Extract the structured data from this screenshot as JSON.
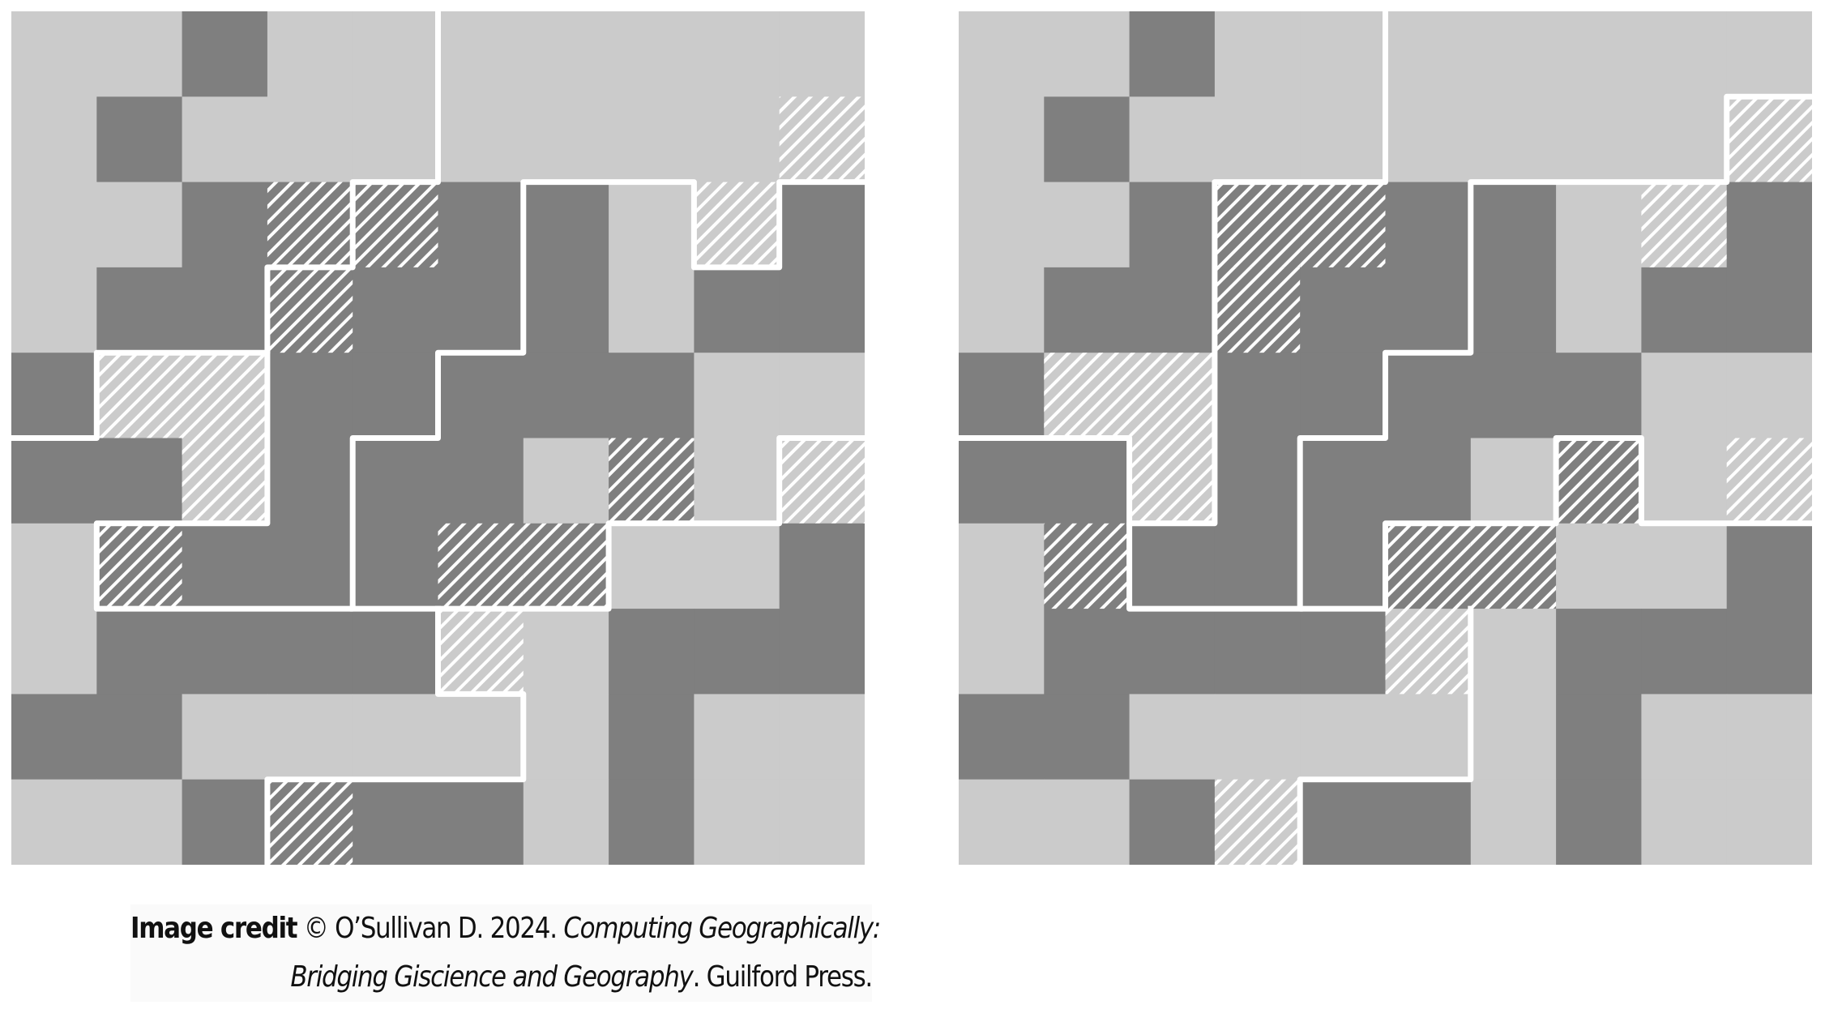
{
  "diagrams": [
    {
      "rows": [
        "LLDLLLLLLL",
        "LDLLLLLLLL",
        "LLDDDDDLLD",
        "LDDDDDDLDD",
        "DLLDDDDDLL",
        "DDLDDDLDLL",
        "LDDDDDDLLD",
        "LDDDDLLDDD",
        "DDLLLLLDLL",
        "LLDDDDLDLL"
      ],
      "hatched_cells": [
        [
          1,
          9
        ],
        [
          2,
          3
        ],
        [
          2,
          4
        ],
        [
          2,
          8
        ],
        [
          3,
          3
        ],
        [
          4,
          1
        ],
        [
          4,
          2
        ],
        [
          5,
          2
        ],
        [
          5,
          7
        ],
        [
          5,
          9
        ],
        [
          6,
          1
        ],
        [
          6,
          5
        ],
        [
          6,
          6
        ],
        [
          7,
          5
        ],
        [
          9,
          3
        ]
      ]
    },
    {
      "rows": [
        "LLDLLLLLLL",
        "LDLLLLLLLL",
        "LLDDDDDLLD",
        "LDDDDDDLDD",
        "DLLDDDDDLL",
        "DDLDDDLDLL",
        "LDDDDDDLLD",
        "LDDDDLLDDD",
        "DDLLLLLDLL",
        "LLDLDDLDLL"
      ],
      "hatched_cells": [
        [
          1,
          9
        ],
        [
          2,
          3
        ],
        [
          2,
          4
        ],
        [
          2,
          8
        ],
        [
          3,
          3
        ],
        [
          4,
          1
        ],
        [
          4,
          2
        ],
        [
          5,
          2
        ],
        [
          5,
          7
        ],
        [
          5,
          9
        ],
        [
          6,
          1
        ],
        [
          6,
          5
        ],
        [
          6,
          6
        ],
        [
          7,
          5
        ],
        [
          9,
          3
        ]
      ]
    }
  ],
  "colors": {
    "light_cell": "#cbcbcb",
    "dark_cell": "#7f7f7f",
    "boundary": "#ffffff",
    "hatch": "#ffffff"
  },
  "credit": {
    "label": "Image credit",
    "text_before": "© O’Sullivan D. 2024. ",
    "title_part1": "Computing Geographically:",
    "title_part2": "Bridging Giscience and Geography",
    "text_after": ". Guilford Press."
  }
}
